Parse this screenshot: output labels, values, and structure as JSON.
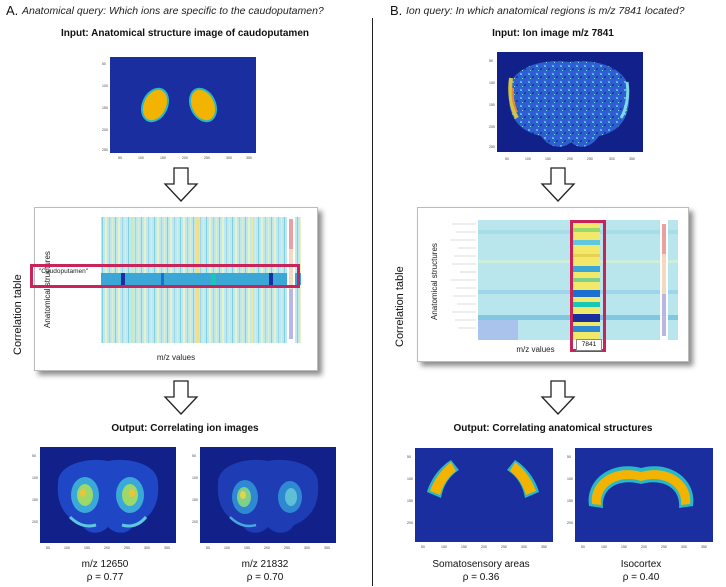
{
  "panel_a": {
    "letter": "A.",
    "query": "Anatomical query: Which ions are specific to the caudoputamen?",
    "input_heading": "Input: Anatomical structure image of caudoputamen",
    "table_side_label": "Correlation table",
    "table_y_label": "Anatomical structures",
    "table_x_label": "m/z values",
    "highlight_label": "\"Caudoputamen\"",
    "output_heading": "Output: Correlating ion images",
    "outputs": [
      {
        "name": "m/z 12650",
        "rho": "ρ = 0.77"
      },
      {
        "name": "m/z 21832",
        "rho": "ρ = 0.70"
      }
    ]
  },
  "panel_b": {
    "letter": "B.",
    "query": "Ion query: In which anatomical regions is m/z 7841 located?",
    "input_heading": "Input: Ion image m/z 7841",
    "table_side_label": "Correlation table",
    "table_y_label": "Anatomical structures",
    "table_x_label": "m/z values",
    "highlight_label": "7841",
    "output_heading": "Output: Correlating anatomical structures",
    "outputs": [
      {
        "name": "Somatosensory areas",
        "rho": "ρ = 0.36"
      },
      {
        "name": "Isocortex",
        "rho": "ρ = 0.40"
      }
    ]
  },
  "colors": {
    "background_blue": "#1a2ea0",
    "region_yellow": "#f2b400",
    "highlight": "#c8245a",
    "divider": "#222222"
  }
}
